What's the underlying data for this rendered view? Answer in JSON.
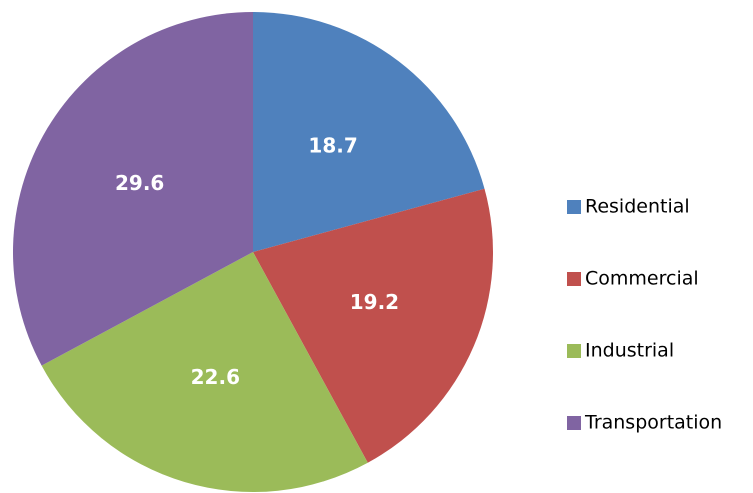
{
  "chart_data": {
    "type": "pie",
    "categories": [
      "Residential",
      "Commercial",
      "Industrial",
      "Transportation"
    ],
    "values": [
      18.7,
      19.2,
      22.6,
      29.6
    ],
    "colors": [
      "#4f81bd",
      "#c0504d",
      "#9bbb59",
      "#8064a2"
    ],
    "legend": "right"
  }
}
